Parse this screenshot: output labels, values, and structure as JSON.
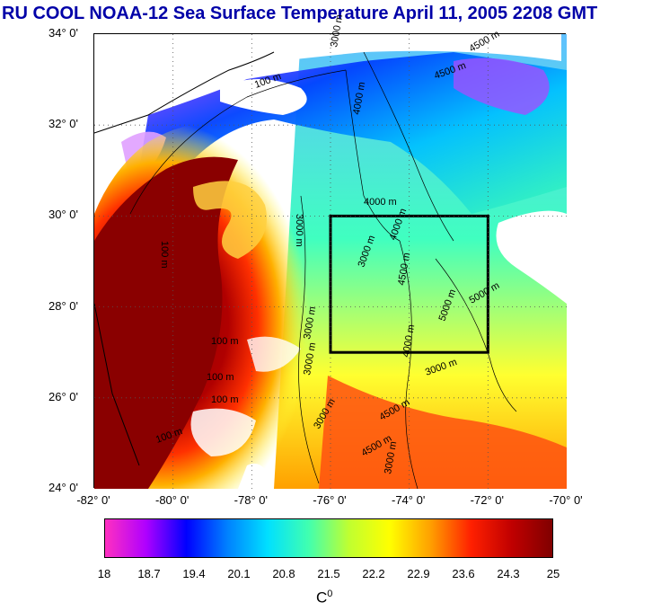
{
  "title": "RU COOL  NOAA-12 Sea Surface Temperature April 11, 2005 2208 GMT",
  "map": {
    "lat_labels": [
      "34° 0'",
      "32° 0'",
      "30° 0'",
      "28° 0'",
      "26° 0'",
      "24° 0'"
    ],
    "lon_labels": [
      "-82° 0'",
      "-80° 0'",
      "-78° 0'",
      "-76° 0'",
      "-74° 0'",
      "-72° 0'",
      "-70° 0'"
    ],
    "lat_range": [
      24,
      34
    ],
    "lon_range": [
      -82,
      -70
    ],
    "box": {
      "lon": [
        -76,
        -72
      ],
      "lat": [
        27,
        30
      ]
    },
    "contour_labels": [
      "100 m",
      "100 m",
      "100 m",
      "100 m",
      "100 m",
      "100 m",
      "3000 m",
      "3000 m",
      "3000 m",
      "3000 m",
      "3000 m",
      "3000 m",
      "4000 m",
      "4000 m",
      "4000 m",
      "4500 m",
      "4500 m",
      "4500 m",
      "4500 m",
      "4500 m",
      "5000 m",
      "5000 m",
      "3000 m",
      "3000 m",
      "4000 m"
    ]
  },
  "colorbar": {
    "ticks": [
      "18",
      "18.7",
      "19.4",
      "20.1",
      "20.8",
      "21.5",
      "22.2",
      "22.9",
      "23.6",
      "24.3",
      "25"
    ],
    "unit": "C",
    "unit_sup": "0",
    "colors": [
      "#ff30c0",
      "#b000ff",
      "#0000ff",
      "#0080ff",
      "#00e0ff",
      "#40ffb0",
      "#c0ff30",
      "#ffff00",
      "#ffa000",
      "#ff2000",
      "#c00000",
      "#800000"
    ]
  }
}
